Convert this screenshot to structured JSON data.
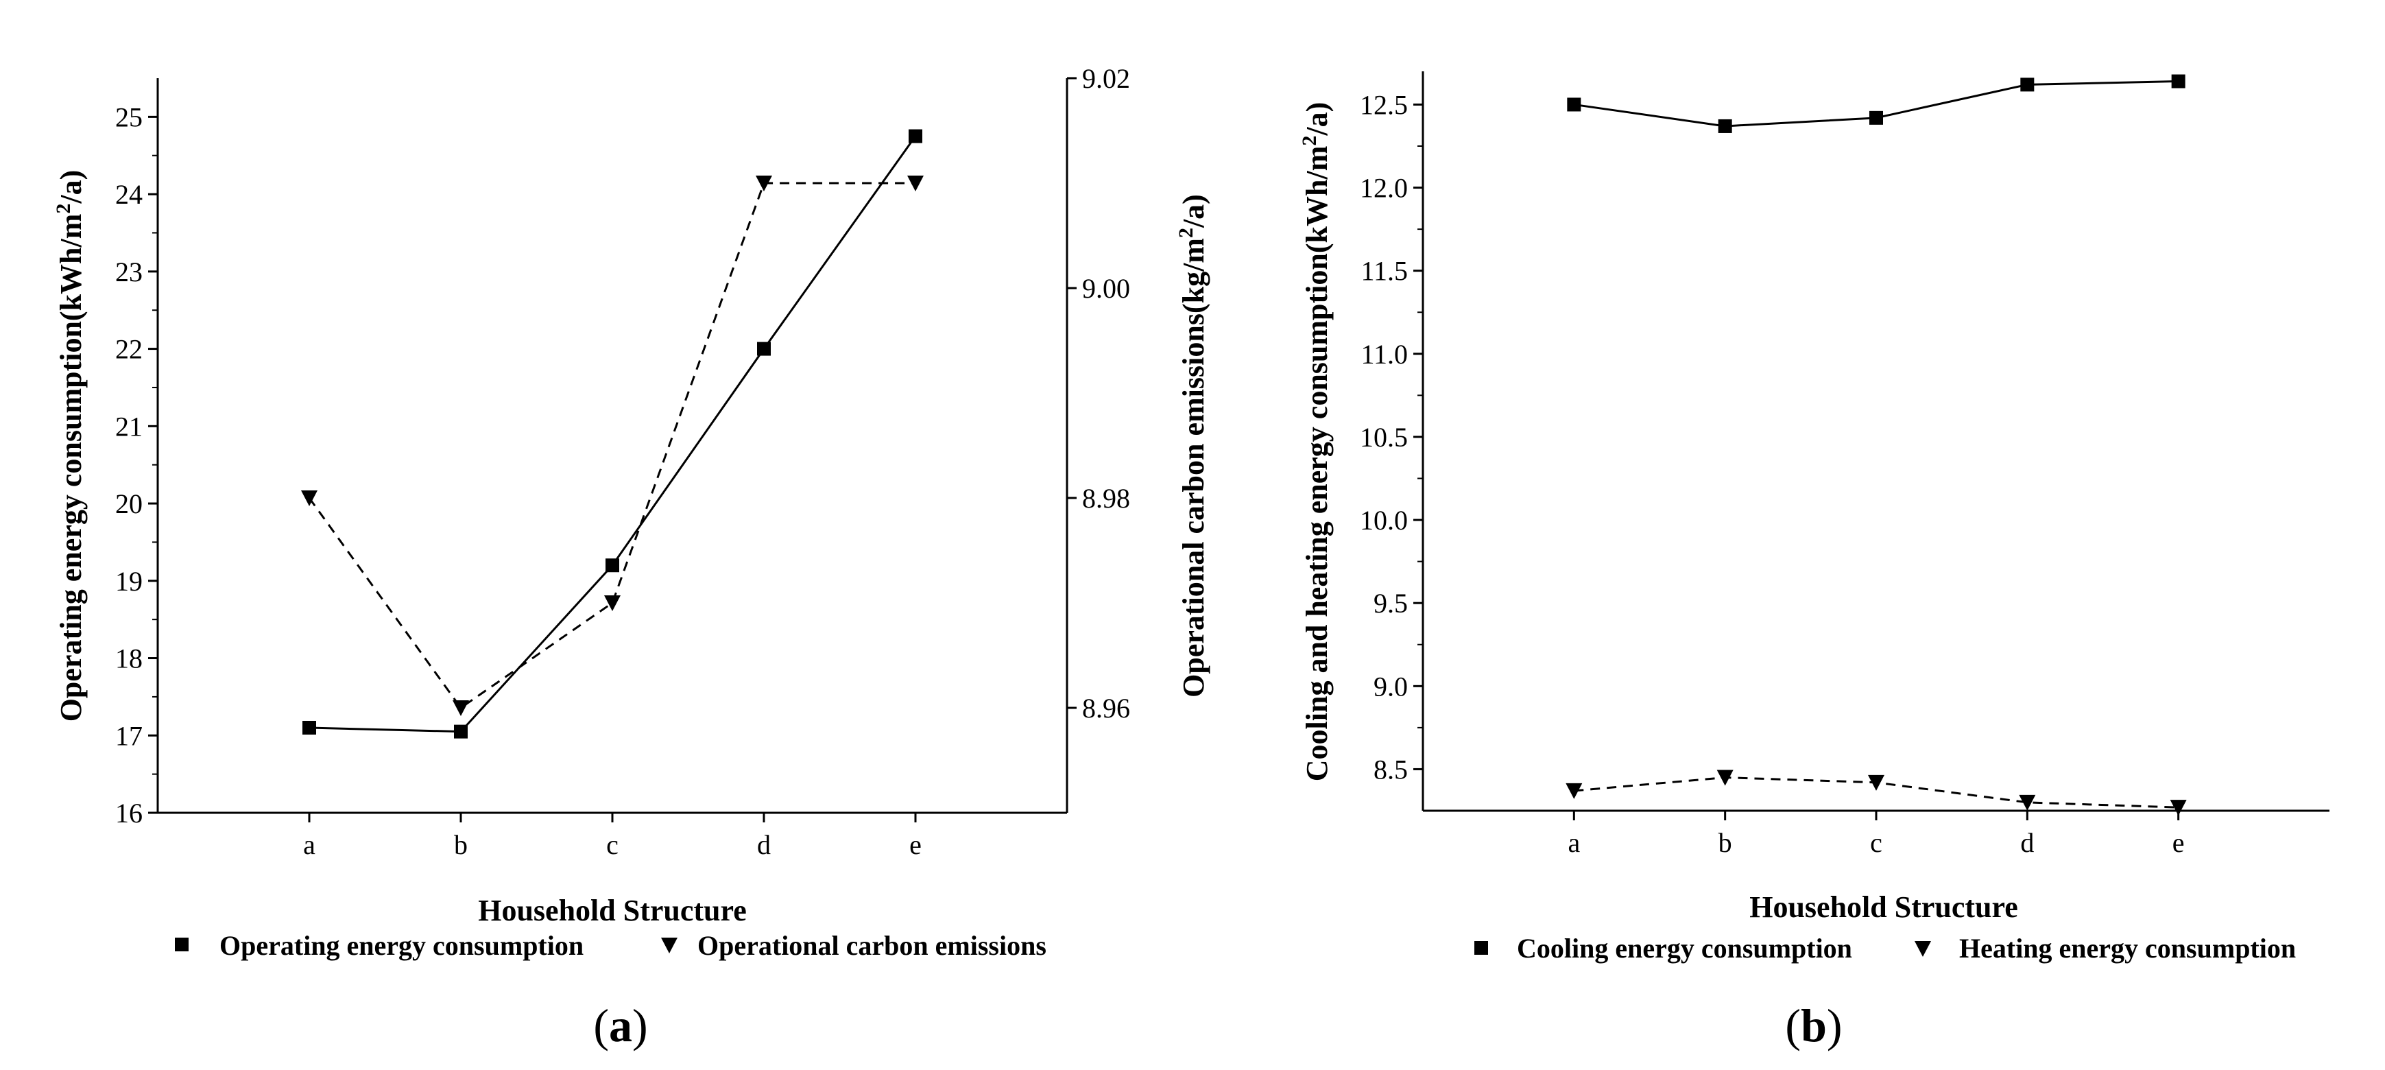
{
  "chart_data": [
    {
      "type": "line",
      "panel_label": {
        "open": "(",
        "letter": "a",
        "close": ")"
      },
      "xlabel": "Household Structure",
      "categories": [
        "a",
        "b",
        "c",
        "d",
        "e"
      ],
      "ylabel_left": {
        "pre": "Operating energy consumption(kWh/m",
        "sup": "2",
        "post": "/a)"
      },
      "ylabel_right": {
        "pre": "Operational carbon emissions(kg/m",
        "sup": "2",
        "post": "/a)"
      },
      "ylim_left": [
        16,
        25.5
      ],
      "yticks_left": [
        16,
        17,
        18,
        19,
        20,
        21,
        22,
        23,
        24,
        25
      ],
      "ylim_right": [
        8.95,
        9.02
      ],
      "yticks_right": [
        8.96,
        8.98,
        9.0,
        9.02
      ],
      "ytick_labels_right": [
        "8.96",
        "8.98",
        "9.00",
        "9.02"
      ],
      "grid": false,
      "legend_position": "bottom",
      "series": [
        {
          "name": "Operating energy consumption",
          "axis": "left",
          "marker": "square",
          "line": "solid",
          "color": "#000000",
          "values": [
            17.1,
            17.05,
            19.2,
            22.0,
            24.75
          ]
        },
        {
          "name": "Operational carbon emissions",
          "axis": "right",
          "marker": "triangle-down",
          "line": "dashed",
          "color": "#000000",
          "values": [
            8.98,
            8.96,
            8.97,
            9.01,
            9.01
          ]
        }
      ]
    },
    {
      "type": "line",
      "panel_label": {
        "open": "(",
        "letter": "b",
        "close": ")"
      },
      "xlabel": "Household Structure",
      "categories": [
        "a",
        "b",
        "c",
        "d",
        "e"
      ],
      "ylabel_left": {
        "pre": "Cooling and heating energy consumption(kWh/m",
        "sup": "2",
        "post": "/a)"
      },
      "ylim_left": [
        8.25,
        12.7
      ],
      "yticks_left": [
        8.5,
        9.0,
        9.5,
        10.0,
        10.5,
        11.0,
        11.5,
        12.0,
        12.5
      ],
      "ytick_labels_left": [
        "8.5",
        "9.0",
        "9.5",
        "10.0",
        "10.5",
        "11.0",
        "11.5",
        "12.0",
        "12.5"
      ],
      "grid": false,
      "legend_position": "bottom",
      "series": [
        {
          "name": "Cooling energy consumption",
          "axis": "left",
          "marker": "square",
          "line": "solid",
          "color": "#000000",
          "values": [
            12.5,
            12.37,
            12.42,
            12.62,
            12.64
          ]
        },
        {
          "name": "Heating energy consumption",
          "axis": "left",
          "marker": "triangle-down",
          "line": "dashed",
          "color": "#000000",
          "values": [
            8.37,
            8.45,
            8.42,
            8.3,
            8.27
          ]
        }
      ]
    }
  ]
}
